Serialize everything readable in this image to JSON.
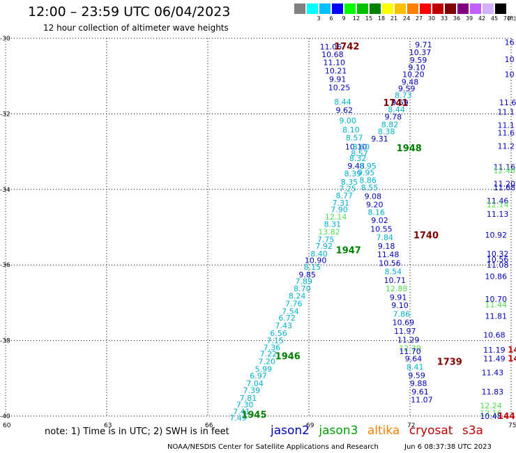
{
  "header": {
    "title": "12:00 – 23:59 UTC 06/04/2023",
    "subtitle": "12 hour collection of altimeter wave heights"
  },
  "color_scale": {
    "unit": "(ft)",
    "colors": [
      "#808080",
      "#00ffff",
      "#00c0ff",
      "#0000ff",
      "#00ff00",
      "#00c000",
      "#008000",
      "#ffff00",
      "#ffc000",
      "#ff8000",
      "#ff0000",
      "#c00000",
      "#800000",
      "#800080",
      "#c060ff",
      "#d0b0ff",
      "#000000"
    ],
    "labels": [
      "",
      "3",
      "6",
      "9",
      "12",
      "15",
      "18",
      "21",
      "24",
      "27",
      "30",
      "33",
      "36",
      "39",
      "42",
      "45",
      "70"
    ]
  },
  "map": {
    "x_ticks": [
      "60",
      "63",
      "66",
      "69",
      "72",
      "75"
    ],
    "y_ticks": [
      "-30",
      "-32",
      "-34",
      "-36",
      "-38",
      "-40"
    ]
  },
  "satellite_colors": {
    "jason2": "#0000c0",
    "jason3": "#00a000",
    "altika": "#ff8000",
    "cryosat": "#c00000",
    "s3a": "#c00000"
  },
  "chart_data": {
    "type": "scatter",
    "x_domain": [
      60,
      75
    ],
    "y_domain": [
      -40,
      -30
    ],
    "x_ticks": [
      60,
      63,
      66,
      69,
      72,
      75
    ],
    "y_ticks": [
      -30,
      -32,
      -34,
      -36,
      -38,
      -40
    ],
    "grid": true,
    "grid_style": "dotted",
    "time_labels": [
      {
        "text": "1742",
        "lon": 69.75,
        "lat": -30.2,
        "color": "#800000"
      },
      {
        "text": "1741",
        "lon": 71.2,
        "lat": -31.7,
        "color": "#800000"
      },
      {
        "text": "1740",
        "lon": 72.1,
        "lat": -35.2,
        "color": "#800000"
      },
      {
        "text": "1739",
        "lon": 72.8,
        "lat": -38.55,
        "color": "#800000"
      },
      {
        "text": "1948",
        "lon": 71.6,
        "lat": -32.9,
        "color": "#008000"
      },
      {
        "text": "1947",
        "lon": 69.8,
        "lat": -35.6,
        "color": "#008000"
      },
      {
        "text": "1946",
        "lon": 68.0,
        "lat": -38.4,
        "color": "#008000"
      },
      {
        "text": "1945",
        "lon": 67.0,
        "lat": -39.95,
        "color": "#008000"
      }
    ],
    "points": [
      {
        "text": "11.06",
        "lon": 69.65,
        "lat": -30.22,
        "color": "#0000c0"
      },
      {
        "text": "10.68",
        "lon": 69.7,
        "lat": -30.42,
        "color": "#0000c0"
      },
      {
        "text": "11.10",
        "lon": 69.75,
        "lat": -30.64,
        "color": "#0000c0"
      },
      {
        "text": "10.21",
        "lon": 69.8,
        "lat": -30.86,
        "color": "#0000c0"
      },
      {
        "text": "9.91",
        "lon": 69.85,
        "lat": -31.08,
        "color": "#0000c0"
      },
      {
        "text": "10.25",
        "lon": 69.9,
        "lat": -31.3,
        "color": "#0000c0"
      },
      {
        "text": "8.44",
        "lon": 70.0,
        "lat": -31.68,
        "color": "#00b0d0"
      },
      {
        "text": "9.62",
        "lon": 70.05,
        "lat": -31.9,
        "color": "#0000c0"
      },
      {
        "text": "9.00",
        "lon": 70.15,
        "lat": -32.18,
        "color": "#00b0d0"
      },
      {
        "text": "8.10",
        "lon": 70.25,
        "lat": -32.42,
        "color": "#00b0d0"
      },
      {
        "text": "8.57",
        "lon": 70.35,
        "lat": -32.63,
        "color": "#00b0d0"
      },
      {
        "text": "10.10",
        "lon": 70.4,
        "lat": -32.87,
        "color": "#0000c0"
      },
      {
        "text": "8.60",
        "lon": 70.55,
        "lat": -32.87,
        "color": "#00b0d0"
      },
      {
        "text": "8.57",
        "lon": 70.5,
        "lat": -33.04,
        "color": "#00b0d0"
      },
      {
        "text": "8.32",
        "lon": 70.45,
        "lat": -33.17,
        "color": "#00b0d0"
      },
      {
        "text": "9.48",
        "lon": 70.4,
        "lat": -33.38,
        "color": "#0000c0"
      },
      {
        "text": "8.39",
        "lon": 70.3,
        "lat": -33.58,
        "color": "#00b0d0"
      },
      {
        "text": "8.35",
        "lon": 70.2,
        "lat": -33.8,
        "color": "#00b0d0"
      },
      {
        "text": "7.25",
        "lon": 70.15,
        "lat": -33.98,
        "color": "#00b0d0"
      },
      {
        "text": "8.77",
        "lon": 70.05,
        "lat": -34.16,
        "color": "#00b0d0"
      },
      {
        "text": "7.31",
        "lon": 69.95,
        "lat": -34.35,
        "color": "#00b0d0"
      },
      {
        "text": "7.90",
        "lon": 69.9,
        "lat": -34.53,
        "color": "#00b0d0"
      },
      {
        "text": "12.14",
        "lon": 69.8,
        "lat": -34.72,
        "color": "#50e050"
      },
      {
        "text": "8.31",
        "lon": 69.7,
        "lat": -34.92,
        "color": "#00b0d0"
      },
      {
        "text": "13.82",
        "lon": 69.6,
        "lat": -35.12,
        "color": "#50e050"
      },
      {
        "text": "7.75",
        "lon": 69.5,
        "lat": -35.32,
        "color": "#00b0d0"
      },
      {
        "text": "7.92",
        "lon": 69.45,
        "lat": -35.5,
        "color": "#00b0d0"
      },
      {
        "text": "8.40",
        "lon": 69.3,
        "lat": -35.7,
        "color": "#00b0d0"
      },
      {
        "text": "10.90",
        "lon": 69.2,
        "lat": -35.88,
        "color": "#0000c0"
      },
      {
        "text": "8.15",
        "lon": 69.1,
        "lat": -36.05,
        "color": "#00b0d0"
      },
      {
        "text": "9.85",
        "lon": 68.95,
        "lat": -36.25,
        "color": "#0000c0"
      },
      {
        "text": "7.89",
        "lon": 68.85,
        "lat": -36.43,
        "color": "#00b0d0"
      },
      {
        "text": "8.70",
        "lon": 68.8,
        "lat": -36.62,
        "color": "#00b0d0"
      },
      {
        "text": "8.24",
        "lon": 68.65,
        "lat": -36.82,
        "color": "#00b0d0"
      },
      {
        "text": "7.76",
        "lon": 68.55,
        "lat": -37.02,
        "color": "#00b0d0"
      },
      {
        "text": "7.54",
        "lon": 68.45,
        "lat": -37.22,
        "color": "#00b0d0"
      },
      {
        "text": "6.72",
        "lon": 68.35,
        "lat": -37.4,
        "color": "#00b0d0"
      },
      {
        "text": "7.43",
        "lon": 68.25,
        "lat": -37.6,
        "color": "#00b0d0"
      },
      {
        "text": "6.56",
        "lon": 68.1,
        "lat": -37.8,
        "color": "#00b0d0"
      },
      {
        "text": "7.15",
        "lon": 68.0,
        "lat": -38.0,
        "color": "#00b0d0"
      },
      {
        "text": "7.36",
        "lon": 67.9,
        "lat": -38.18,
        "color": "#00b0d0"
      },
      {
        "text": "7.22",
        "lon": 67.8,
        "lat": -38.35,
        "color": "#00b0d0"
      },
      {
        "text": "7.20",
        "lon": 67.75,
        "lat": -38.55,
        "color": "#00b0d0"
      },
      {
        "text": "5.99",
        "lon": 67.65,
        "lat": -38.75,
        "color": "#00b0d0"
      },
      {
        "text": "6.97",
        "lon": 67.5,
        "lat": -38.93,
        "color": "#00b0d0"
      },
      {
        "text": "7.04",
        "lon": 67.4,
        "lat": -39.13,
        "color": "#00b0d0"
      },
      {
        "text": "7.39",
        "lon": 67.3,
        "lat": -39.32,
        "color": "#00b0d0"
      },
      {
        "text": "7.81",
        "lon": 67.2,
        "lat": -39.52,
        "color": "#00b0d0"
      },
      {
        "text": "7.30",
        "lon": 67.1,
        "lat": -39.7,
        "color": "#00b0d0"
      },
      {
        "text": "7.41",
        "lon": 67.0,
        "lat": -39.88,
        "color": "#00b0d0"
      },
      {
        "text": "7.49",
        "lon": 66.9,
        "lat": -40.05,
        "color": "#00b0d0"
      },
      {
        "text": "9.71",
        "lon": 72.4,
        "lat": -30.17,
        "color": "#0000c0"
      },
      {
        "text": "10.37",
        "lon": 72.3,
        "lat": -30.37,
        "color": "#0000c0"
      },
      {
        "text": "9.59",
        "lon": 72.25,
        "lat": -30.57,
        "color": "#0000c0"
      },
      {
        "text": "9.10",
        "lon": 72.2,
        "lat": -30.77,
        "color": "#0000c0"
      },
      {
        "text": "10.20",
        "lon": 72.1,
        "lat": -30.95,
        "color": "#0000c0"
      },
      {
        "text": "9.48",
        "lon": 72.0,
        "lat": -31.15,
        "color": "#0000c0"
      },
      {
        "text": "9.59",
        "lon": 71.9,
        "lat": -31.33,
        "color": "#0000c0"
      },
      {
        "text": "8.73",
        "lon": 71.8,
        "lat": -31.5,
        "color": "#00b0d0"
      },
      {
        "text": "9.69",
        "lon": 71.7,
        "lat": -31.7,
        "color": "#0000c0"
      },
      {
        "text": "8.44",
        "lon": 71.6,
        "lat": -31.88,
        "color": "#00b0d0"
      },
      {
        "text": "9.78",
        "lon": 71.5,
        "lat": -32.08,
        "color": "#0000c0"
      },
      {
        "text": "8.82",
        "lon": 71.4,
        "lat": -32.28,
        "color": "#00b0d0"
      },
      {
        "text": "8.38",
        "lon": 71.3,
        "lat": -32.46,
        "color": "#00b0d0"
      },
      {
        "text": "9.31",
        "lon": 71.1,
        "lat": -32.66,
        "color": "#0000c0"
      },
      {
        "text": "8.95",
        "lon": 70.75,
        "lat": -33.38,
        "color": "#00b0d0"
      },
      {
        "text": "9.95",
        "lon": 70.7,
        "lat": -33.55,
        "color": "#00b0d0"
      },
      {
        "text": "8.86",
        "lon": 70.75,
        "lat": -33.75,
        "color": "#00b0d0"
      },
      {
        "text": "8.55",
        "lon": 70.8,
        "lat": -33.95,
        "color": "#00b0d0"
      },
      {
        "text": "9.08",
        "lon": 70.9,
        "lat": -34.18,
        "color": "#0000c0"
      },
      {
        "text": "9.20",
        "lon": 70.95,
        "lat": -34.4,
        "color": "#0000c0"
      },
      {
        "text": "8.16",
        "lon": 71.0,
        "lat": -34.6,
        "color": "#00b0d0"
      },
      {
        "text": "9.02",
        "lon": 71.1,
        "lat": -34.82,
        "color": "#0000c0"
      },
      {
        "text": "10.55",
        "lon": 71.15,
        "lat": -35.05,
        "color": "#0000c0"
      },
      {
        "text": "7.84",
        "lon": 71.25,
        "lat": -35.27,
        "color": "#00b0d0"
      },
      {
        "text": "9.18",
        "lon": 71.3,
        "lat": -35.5,
        "color": "#0000c0"
      },
      {
        "text": "11.48",
        "lon": 71.35,
        "lat": -35.72,
        "color": "#0000c0"
      },
      {
        "text": "10.56",
        "lon": 71.4,
        "lat": -35.95,
        "color": "#0000c0"
      },
      {
        "text": "8.54",
        "lon": 71.5,
        "lat": -36.17,
        "color": "#00b0d0"
      },
      {
        "text": "10.71",
        "lon": 71.55,
        "lat": -36.4,
        "color": "#0000c0"
      },
      {
        "text": "12.88",
        "lon": 71.6,
        "lat": -36.62,
        "color": "#50e050"
      },
      {
        "text": "9.91",
        "lon": 71.65,
        "lat": -36.85,
        "color": "#0000c0"
      },
      {
        "text": "9.10",
        "lon": 71.7,
        "lat": -37.07,
        "color": "#0000c0"
      },
      {
        "text": "7.86",
        "lon": 71.75,
        "lat": -37.3,
        "color": "#00b0d0"
      },
      {
        "text": "10.69",
        "lon": 71.8,
        "lat": -37.52,
        "color": "#0000c0"
      },
      {
        "text": "11.97",
        "lon": 71.85,
        "lat": -37.75,
        "color": "#0000c0"
      },
      {
        "text": "11.29",
        "lon": 71.95,
        "lat": -37.98,
        "color": "#0000c0"
      },
      {
        "text": "12.30",
        "lon": 72.0,
        "lat": -38.2,
        "color": "#50e050"
      },
      {
        "text": "11.70",
        "lon": 72.0,
        "lat": -38.28,
        "color": "#0000c0"
      },
      {
        "text": "9.64",
        "lon": 72.1,
        "lat": -38.48,
        "color": "#0000c0"
      },
      {
        "text": "8.41",
        "lon": 72.15,
        "lat": -38.7,
        "color": "#00b0d0"
      },
      {
        "text": "9.59",
        "lon": 72.2,
        "lat": -38.92,
        "color": "#0000c0"
      },
      {
        "text": "9.88",
        "lon": 72.25,
        "lat": -39.13,
        "color": "#0000c0"
      },
      {
        "text": "9.61",
        "lon": 72.3,
        "lat": -39.35,
        "color": "#0000c0"
      },
      {
        "text": "11.07",
        "lon": 72.35,
        "lat": -39.57,
        "color": "#0000c0"
      },
      {
        "text": "11.46",
        "lon": 74.6,
        "lat": -34.3,
        "color": "#0000c0"
      },
      {
        "text": "12.14",
        "lon": 74.6,
        "lat": -34.4,
        "color": "#50e050"
      },
      {
        "text": "11.13",
        "lon": 74.6,
        "lat": -34.65,
        "color": "#0000c0"
      },
      {
        "text": "10.92",
        "lon": 74.55,
        "lat": -35.2,
        "color": "#0000c0"
      },
      {
        "text": "10.32",
        "lon": 74.6,
        "lat": -35.7,
        "color": "#0000c0"
      },
      {
        "text": "10.56",
        "lon": 74.6,
        "lat": -35.85,
        "color": "#0000c0"
      },
      {
        "text": "11.08",
        "lon": 74.6,
        "lat": -36.0,
        "color": "#0000c0"
      },
      {
        "text": "10.86",
        "lon": 74.55,
        "lat": -36.3,
        "color": "#0000c0"
      },
      {
        "text": "10.70",
        "lon": 74.55,
        "lat": -36.9,
        "color": "#0000c0"
      },
      {
        "text": "11.44",
        "lon": 74.55,
        "lat": -37.05,
        "color": "#50e050"
      },
      {
        "text": "11.81",
        "lon": 74.55,
        "lat": -37.35,
        "color": "#0000c0"
      },
      {
        "text": "10.68",
        "lon": 74.5,
        "lat": -37.85,
        "color": "#0000c0"
      },
      {
        "text": "11.19",
        "lon": 74.5,
        "lat": -38.25,
        "color": "#0000c0"
      },
      {
        "text": "11.49",
        "lon": 74.5,
        "lat": -38.48,
        "color": "#0000c0"
      },
      {
        "text": "11.43",
        "lon": 74.45,
        "lat": -38.85,
        "color": "#0000c0"
      },
      {
        "text": "11.83",
        "lon": 74.45,
        "lat": -39.35,
        "color": "#0000c0"
      },
      {
        "text": "12.24",
        "lon": 74.4,
        "lat": -39.72,
        "color": "#50e050"
      },
      {
        "text": "12.16",
        "lon": 74.4,
        "lat": -39.92,
        "color": "#50e050"
      },
      {
        "text": "10.48",
        "lon": 74.4,
        "lat": -40.0,
        "color": "#0000c0"
      },
      {
        "text": "11.20",
        "lon": 74.8,
        "lat": -33.85,
        "color": "#0000c0"
      },
      {
        "text": "11.68",
        "lon": 74.8,
        "lat": -33.95,
        "color": "#0000c0"
      },
      {
        "text": "11.16",
        "lon": 74.8,
        "lat": -33.4,
        "color": "#0000c0"
      },
      {
        "text": "12.46",
        "lon": 74.8,
        "lat": -33.5,
        "color": "#50e050"
      },
      {
        "text": "11.2",
        "lon": 74.85,
        "lat": -32.85,
        "color": "#0000c0"
      },
      {
        "text": "11.1",
        "lon": 74.85,
        "lat": -32.3,
        "color": "#0000c0"
      },
      {
        "text": "11.6",
        "lon": 74.85,
        "lat": -32.5,
        "color": "#0000c0"
      },
      {
        "text": "11.1",
        "lon": 74.85,
        "lat": -31.95,
        "color": "#0000c0"
      },
      {
        "text": "11.6",
        "lon": 74.9,
        "lat": -31.7,
        "color": "#0000c0"
      },
      {
        "text": "10",
        "lon": 74.95,
        "lat": -30.55,
        "color": "#0000c0"
      },
      {
        "text": "16",
        "lon": 74.95,
        "lat": -30.1,
        "color": "#0000c0"
      },
      {
        "text": "10",
        "lon": 74.95,
        "lat": -30.95,
        "color": "#0000c0"
      }
    ],
    "edge_labels": [
      {
        "text": "14",
        "lon": 74.9,
        "lat": -38.25,
        "color": "#c00000"
      },
      {
        "text": "14",
        "lon": 74.9,
        "lat": -38.48,
        "color": "#c00000"
      },
      {
        "text": "144",
        "lon": 74.6,
        "lat": -40.0,
        "color": "#c00000"
      }
    ]
  },
  "legend": {
    "note": "note:  1) Time is in UTC; 2) SWH is in feet",
    "satellites": [
      "jason2",
      "jason3",
      "altika",
      "cryosat",
      "s3a"
    ]
  },
  "footer": {
    "credit": "NOAA/NESDIS Center for Satellite Applications and Research",
    "timestamp": "Jun  6 08:37:38 UTC 2023"
  }
}
